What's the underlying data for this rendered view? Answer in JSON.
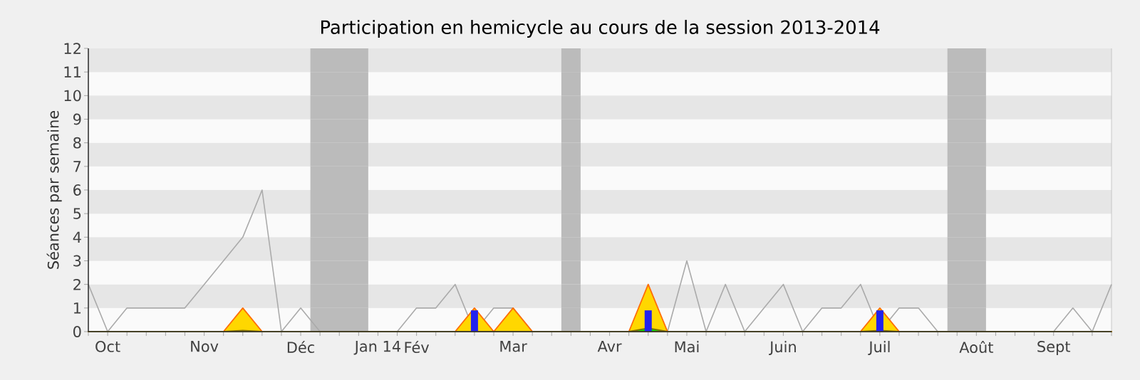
{
  "chart_data": {
    "type": "line",
    "title": "Participation en hemicycle au cours de la session 2013-2014",
    "ylabel": "Séances par semaine",
    "categories": [
      null,
      "Oct",
      null,
      null,
      null,
      null,
      "Nov",
      null,
      null,
      null,
      null,
      "Déc",
      null,
      null,
      null,
      "Jan 14",
      null,
      "Fév",
      null,
      null,
      null,
      null,
      "Mar",
      null,
      null,
      null,
      null,
      "Avr",
      null,
      null,
      null,
      "Mai",
      null,
      null,
      null,
      null,
      "Juin",
      null,
      null,
      null,
      null,
      "Juil",
      null,
      null,
      null,
      null,
      "Août",
      null,
      null,
      null,
      "Sept",
      null,
      null,
      null
    ],
    "ylim": [
      0,
      12
    ],
    "yticks": [
      0,
      1,
      2,
      3,
      4,
      5,
      6,
      7,
      8,
      9,
      10,
      11,
      12
    ],
    "series": [
      {
        "color": "#aaaaaa",
        "values": [
          2,
          0,
          1,
          1,
          1,
          1,
          2,
          3,
          4,
          6,
          0,
          1,
          0,
          0,
          0,
          0,
          0,
          1,
          1,
          2,
          0,
          1,
          1,
          0,
          0,
          0,
          0,
          0,
          0,
          0,
          0,
          3,
          0,
          2,
          0,
          1,
          2,
          0,
          1,
          1,
          2,
          0,
          1,
          1,
          0,
          0,
          0,
          0,
          0,
          0,
          0,
          1,
          0,
          2
        ]
      },
      {
        "type": "area",
        "color": "#ffd700",
        "values": [
          0,
          0,
          0,
          0,
          0,
          0,
          0,
          0,
          1,
          0,
          0,
          0,
          0,
          0,
          0,
          0,
          0,
          0,
          0,
          0,
          1,
          0,
          1,
          0,
          0,
          0,
          0,
          0,
          0,
          2,
          0,
          0,
          0,
          0,
          0,
          0,
          0,
          0,
          0,
          0,
          0,
          1,
          0,
          0,
          0,
          0,
          0,
          0,
          0,
          0,
          0,
          0,
          0,
          0
        ]
      },
      {
        "type": "area",
        "color": "#00dd00",
        "values": [
          0,
          0,
          0,
          0,
          0,
          0,
          0,
          0,
          0.05,
          0,
          0,
          0,
          0,
          0,
          0,
          0,
          0,
          0,
          0,
          0,
          0,
          0,
          0,
          0,
          0,
          0,
          0,
          0,
          0,
          0.15,
          0,
          0,
          0,
          0,
          0,
          0,
          0,
          0,
          0,
          0,
          0,
          0.05,
          0,
          0,
          0,
          0,
          0,
          0,
          0,
          0,
          0,
          0,
          0,
          0
        ]
      },
      {
        "type": "bar",
        "color": "#2222ee",
        "values": [
          0,
          0,
          0,
          0,
          0,
          0,
          0,
          0,
          0,
          0,
          0,
          0,
          0,
          0,
          0,
          0,
          0,
          0,
          0,
          0,
          0.9,
          0,
          0,
          0,
          0,
          0,
          0,
          0,
          0,
          0.9,
          0,
          0,
          0,
          0,
          0,
          0,
          0,
          0,
          0,
          0,
          0,
          0.9,
          0,
          0,
          0,
          0,
          0,
          0,
          0,
          0,
          0,
          0,
          0,
          0
        ]
      }
    ]
  }
}
